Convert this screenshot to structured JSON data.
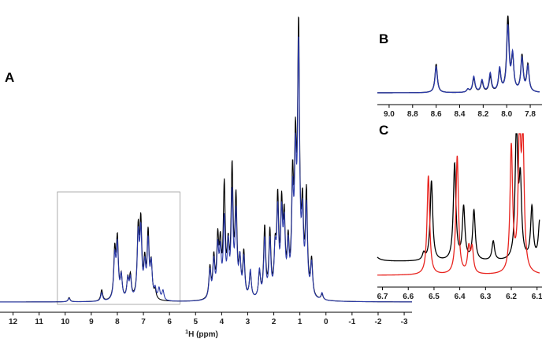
{
  "chart_data": [
    {
      "panel": "A",
      "type": "line",
      "xlabel_sup": "1",
      "xlabel": "H (ppm)",
      "xlim": [
        12.5,
        -3.3
      ],
      "x_reversed": true,
      "ticks": [
        12,
        11,
        10,
        9,
        8,
        7,
        6,
        5,
        4,
        3,
        2,
        1,
        0,
        -1,
        -2,
        -3
      ],
      "ylim": [
        0,
        100
      ],
      "inset_box_ppm": [
        10.3,
        5.6
      ],
      "inset_box_height": 36,
      "colors": {
        "black": "#000000",
        "blue": "#2b3aa8"
      },
      "series": [
        {
          "color": "#000000",
          "peaks": [
            [
              9.85,
              1.5
            ],
            [
              8.6,
              4
            ],
            [
              8.1,
              17
            ],
            [
              8.0,
              21
            ],
            [
              7.85,
              8
            ],
            [
              7.6,
              7
            ],
            [
              7.5,
              8
            ],
            [
              7.2,
              24
            ],
            [
              7.1,
              26
            ],
            [
              6.95,
              12
            ],
            [
              6.82,
              23
            ],
            [
              6.7,
              12
            ],
            [
              6.55,
              3
            ],
            [
              4.45,
              11
            ],
            [
              4.3,
              14
            ],
            [
              4.15,
              20
            ],
            [
              4.05,
              17
            ],
            [
              3.9,
              39
            ],
            [
              3.75,
              16
            ],
            [
              3.6,
              45
            ],
            [
              3.45,
              34
            ],
            [
              3.3,
              12
            ],
            [
              3.15,
              16
            ],
            [
              2.9,
              9
            ],
            [
              2.55,
              9
            ],
            [
              2.35,
              25
            ],
            [
              2.15,
              23
            ],
            [
              1.95,
              15
            ],
            [
              1.85,
              33
            ],
            [
              1.7,
              30
            ],
            [
              1.6,
              25
            ],
            [
              1.45,
              17
            ],
            [
              1.28,
              38
            ],
            [
              1.17,
              47
            ],
            [
              1.05,
              92
            ],
            [
              0.9,
              28
            ],
            [
              0.75,
              36
            ],
            [
              0.55,
              13
            ],
            [
              0.15,
              2
            ]
          ]
        },
        {
          "color": "#2b3aa8",
          "peaks": [
            [
              9.85,
              1.3
            ],
            [
              8.6,
              3
            ],
            [
              8.1,
              15
            ],
            [
              8.0,
              19
            ],
            [
              7.85,
              8
            ],
            [
              7.6,
              7
            ],
            [
              7.5,
              7
            ],
            [
              7.2,
              22
            ],
            [
              7.1,
              23
            ],
            [
              6.95,
              11
            ],
            [
              6.82,
              20
            ],
            [
              6.7,
              12
            ],
            [
              6.55,
              3.5
            ],
            [
              6.4,
              4
            ],
            [
              6.25,
              3.5
            ],
            [
              4.45,
              10
            ],
            [
              4.3,
              13
            ],
            [
              4.15,
              17
            ],
            [
              4.05,
              15
            ],
            [
              3.9,
              27
            ],
            [
              3.75,
              17
            ],
            [
              3.6,
              36
            ],
            [
              3.45,
              29
            ],
            [
              3.3,
              13
            ],
            [
              3.15,
              14
            ],
            [
              2.9,
              10
            ],
            [
              2.55,
              10
            ],
            [
              2.35,
              21
            ],
            [
              2.15,
              20
            ],
            [
              1.95,
              15
            ],
            [
              1.85,
              29
            ],
            [
              1.7,
              27
            ],
            [
              1.6,
              23
            ],
            [
              1.45,
              16
            ],
            [
              1.28,
              33
            ],
            [
              1.17,
              43
            ],
            [
              1.05,
              86
            ],
            [
              0.9,
              25
            ],
            [
              0.75,
              31
            ],
            [
              0.55,
              12
            ],
            [
              0.15,
              2.5
            ]
          ]
        }
      ]
    },
    {
      "panel": "B",
      "type": "line",
      "xlim": [
        9.1,
        7.72
      ],
      "x_reversed": true,
      "ticks": [
        "9.0",
        "8.8",
        "8.6",
        "8.4",
        "8.2",
        "8.0",
        "7.8"
      ],
      "ylim": [
        0,
        100
      ],
      "series": [
        {
          "color": "#000000",
          "peaks": [
            [
              8.6,
              38
            ],
            [
              8.33,
              4
            ],
            [
              8.28,
              19
            ],
            [
              8.21,
              14
            ],
            [
              8.14,
              21
            ],
            [
              8.06,
              28
            ],
            [
              7.99,
              98
            ],
            [
              7.95,
              45
            ],
            [
              7.87,
              48
            ],
            [
              7.82,
              36
            ]
          ]
        },
        {
          "color": "#2b3aa8",
          "peaks": [
            [
              8.6,
              35
            ],
            [
              8.33,
              4
            ],
            [
              8.28,
              21
            ],
            [
              8.21,
              16
            ],
            [
              8.14,
              25
            ],
            [
              8.06,
              31
            ],
            [
              7.99,
              86
            ],
            [
              7.95,
              48
            ],
            [
              7.87,
              44
            ],
            [
              7.82,
              34
            ]
          ]
        }
      ]
    },
    {
      "panel": "C",
      "type": "line",
      "xlim": [
        6.72,
        6.09
      ],
      "x_reversed": true,
      "ticks": [
        "6.7",
        "6.6",
        "6.5",
        "6.4",
        "6.3",
        "6.2",
        "6.1"
      ],
      "ylim": [
        0,
        100
      ],
      "series": [
        {
          "color": "#000000",
          "baseline": 10,
          "peaks": [
            [
              6.75,
              80
            ],
            [
              6.54,
              5
            ],
            [
              6.51,
              58
            ],
            [
              6.42,
              70
            ],
            [
              6.385,
              38
            ],
            [
              6.345,
              36
            ],
            [
              6.27,
              14
            ],
            [
              6.18,
              95
            ],
            [
              6.165,
              54
            ],
            [
              6.12,
              38
            ],
            [
              6.09,
              28
            ]
          ]
        },
        {
          "color": "#e8231e",
          "baseline": 0,
          "peaks": [
            [
              6.522,
              72
            ],
            [
              6.41,
              86
            ],
            [
              6.365,
              18
            ],
            [
              6.352,
              18
            ],
            [
              6.2,
              91
            ],
            [
              6.168,
              99
            ],
            [
              6.155,
              91
            ]
          ]
        }
      ]
    }
  ],
  "labels": {
    "panel_a": "A",
    "panel_b": "B",
    "panel_c": "C"
  }
}
